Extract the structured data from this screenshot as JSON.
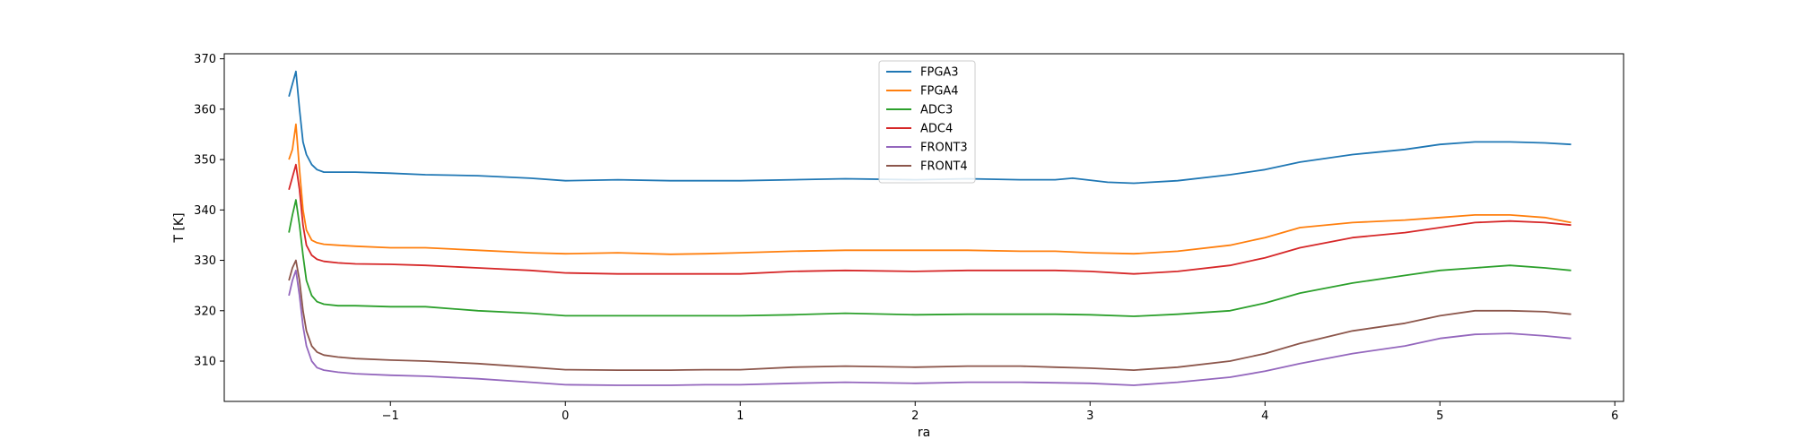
{
  "chart_data": {
    "type": "line",
    "title": "",
    "xlabel": "ra",
    "ylabel": "T [K]",
    "xlim": [
      -1.95,
      6.05
    ],
    "ylim": [
      302,
      371
    ],
    "xticks": [
      -1,
      0,
      1,
      2,
      3,
      4,
      5,
      6
    ],
    "xtick_labels": [
      "−1",
      "0",
      "1",
      "2",
      "3",
      "4",
      "5",
      "6"
    ],
    "yticks": [
      310,
      320,
      330,
      340,
      350,
      360,
      370
    ],
    "ytick_labels": [
      "310",
      "320",
      "330",
      "340",
      "350",
      "360",
      "370"
    ],
    "grid": false,
    "legend_position": "top-center",
    "series": [
      {
        "name": "FPGA3",
        "color": "#1f77b4",
        "x": [
          -1.58,
          -1.56,
          -1.54,
          -1.52,
          -1.5,
          -1.48,
          -1.45,
          -1.42,
          -1.38,
          -1.3,
          -1.2,
          -1.0,
          -0.8,
          -0.5,
          -0.2,
          0.0,
          0.3,
          0.6,
          0.8,
          1.0,
          1.3,
          1.6,
          2.0,
          2.3,
          2.6,
          2.8,
          2.9,
          3.1,
          3.25,
          3.5,
          3.8,
          4.0,
          4.2,
          4.5,
          4.8,
          5.0,
          5.2,
          5.4,
          5.6,
          5.75
        ],
        "y": [
          362.5,
          365,
          367.5,
          360,
          353.5,
          351,
          349,
          348,
          347.5,
          347.5,
          347.5,
          347.3,
          347,
          346.8,
          346.3,
          345.8,
          346,
          345.8,
          345.8,
          345.8,
          346,
          346.2,
          346,
          346.2,
          346,
          346,
          346.3,
          345.5,
          345.3,
          345.8,
          347,
          348,
          349.5,
          351,
          352,
          353,
          353.5,
          353.5,
          353.3,
          353
        ]
      },
      {
        "name": "FPGA4",
        "color": "#ff7f0e",
        "x": [
          -1.58,
          -1.56,
          -1.54,
          -1.52,
          -1.5,
          -1.48,
          -1.45,
          -1.42,
          -1.38,
          -1.3,
          -1.2,
          -1.0,
          -0.8,
          -0.5,
          -0.2,
          0.0,
          0.3,
          0.6,
          0.8,
          1.0,
          1.3,
          1.6,
          2.0,
          2.3,
          2.6,
          2.8,
          3.0,
          3.25,
          3.5,
          3.8,
          4.0,
          4.2,
          4.5,
          4.8,
          5.0,
          5.2,
          5.4,
          5.6,
          5.75
        ],
        "y": [
          350,
          352,
          357,
          348,
          340,
          336,
          334,
          333.5,
          333.2,
          333,
          332.8,
          332.5,
          332.5,
          332,
          331.5,
          331.3,
          331.5,
          331.2,
          331.3,
          331.5,
          331.8,
          332,
          332,
          332,
          331.8,
          331.8,
          331.5,
          331.3,
          331.8,
          333,
          334.5,
          336.5,
          337.5,
          338,
          338.5,
          339,
          339,
          338.5,
          337.5
        ]
      },
      {
        "name": "ADC3",
        "color": "#2ca02c",
        "x": [
          -1.58,
          -1.56,
          -1.54,
          -1.52,
          -1.5,
          -1.48,
          -1.45,
          -1.42,
          -1.38,
          -1.3,
          -1.2,
          -1.0,
          -0.8,
          -0.5,
          -0.2,
          0.0,
          0.3,
          0.6,
          0.8,
          1.0,
          1.3,
          1.6,
          2.0,
          2.3,
          2.6,
          2.8,
          3.0,
          3.25,
          3.5,
          3.8,
          4.0,
          4.2,
          4.5,
          4.8,
          5.0,
          5.2,
          5.4,
          5.6,
          5.75
        ],
        "y": [
          335.5,
          339,
          342,
          337,
          331,
          326,
          323,
          321.8,
          321.3,
          321,
          321,
          320.8,
          320.8,
          320,
          319.5,
          319,
          319,
          319,
          319,
          319,
          319.2,
          319.5,
          319.2,
          319.3,
          319.3,
          319.3,
          319.2,
          318.9,
          319.3,
          320,
          321.5,
          323.5,
          325.5,
          327,
          328,
          328.5,
          329,
          328.5,
          328
        ]
      },
      {
        "name": "ADC4",
        "color": "#d62728",
        "x": [
          -1.58,
          -1.56,
          -1.54,
          -1.52,
          -1.5,
          -1.48,
          -1.45,
          -1.42,
          -1.38,
          -1.3,
          -1.2,
          -1.0,
          -0.8,
          -0.5,
          -0.2,
          0.0,
          0.3,
          0.6,
          0.8,
          1.0,
          1.3,
          1.6,
          2.0,
          2.3,
          2.6,
          2.8,
          3.0,
          3.25,
          3.5,
          3.8,
          4.0,
          4.2,
          4.5,
          4.8,
          5.0,
          5.2,
          5.4,
          5.6,
          5.75
        ],
        "y": [
          344,
          346.5,
          349,
          344,
          337,
          333,
          331,
          330.2,
          329.8,
          329.5,
          329.3,
          329.2,
          329,
          328.5,
          328,
          327.5,
          327.3,
          327.3,
          327.3,
          327.3,
          327.8,
          328,
          327.8,
          328,
          328,
          328,
          327.8,
          327.3,
          327.8,
          329,
          330.5,
          332.5,
          334.5,
          335.5,
          336.5,
          337.5,
          337.8,
          337.5,
          337
        ]
      },
      {
        "name": "FRONT3",
        "color": "#9467bd",
        "x": [
          -1.58,
          -1.56,
          -1.54,
          -1.52,
          -1.5,
          -1.48,
          -1.45,
          -1.42,
          -1.38,
          -1.3,
          -1.2,
          -1.0,
          -0.8,
          -0.5,
          -0.2,
          0.0,
          0.3,
          0.6,
          0.8,
          1.0,
          1.3,
          1.6,
          2.0,
          2.3,
          2.6,
          2.8,
          3.0,
          3.25,
          3.5,
          3.8,
          4.0,
          4.2,
          4.5,
          4.8,
          5.0,
          5.2,
          5.4,
          5.6,
          5.75
        ],
        "y": [
          323,
          326,
          328,
          323,
          317,
          313,
          310,
          308.7,
          308.2,
          307.8,
          307.5,
          307.2,
          307,
          306.5,
          305.8,
          305.3,
          305.2,
          305.2,
          305.3,
          305.3,
          305.6,
          305.8,
          305.6,
          305.8,
          305.8,
          305.7,
          305.6,
          305.2,
          305.8,
          306.8,
          308,
          309.5,
          311.5,
          313,
          314.5,
          315.3,
          315.5,
          315,
          314.5
        ]
      },
      {
        "name": "FRONT4",
        "color": "#8c564b",
        "x": [
          -1.58,
          -1.56,
          -1.54,
          -1.52,
          -1.5,
          -1.48,
          -1.45,
          -1.42,
          -1.38,
          -1.3,
          -1.2,
          -1.0,
          -0.8,
          -0.5,
          -0.2,
          0.0,
          0.3,
          0.6,
          0.8,
          1.0,
          1.3,
          1.6,
          2.0,
          2.3,
          2.6,
          2.8,
          3.0,
          3.25,
          3.5,
          3.8,
          4.0,
          4.2,
          4.5,
          4.8,
          5.0,
          5.2,
          5.4,
          5.6,
          5.75
        ],
        "y": [
          326,
          328.5,
          330,
          326,
          320,
          316,
          313,
          311.8,
          311.2,
          310.8,
          310.5,
          310.2,
          310,
          309.5,
          308.8,
          308.3,
          308.2,
          308.2,
          308.3,
          308.3,
          308.8,
          309,
          308.8,
          309,
          309,
          308.8,
          308.6,
          308.2,
          308.8,
          310,
          311.5,
          313.5,
          316,
          317.5,
          319,
          320,
          320,
          319.8,
          319.3
        ]
      }
    ]
  }
}
